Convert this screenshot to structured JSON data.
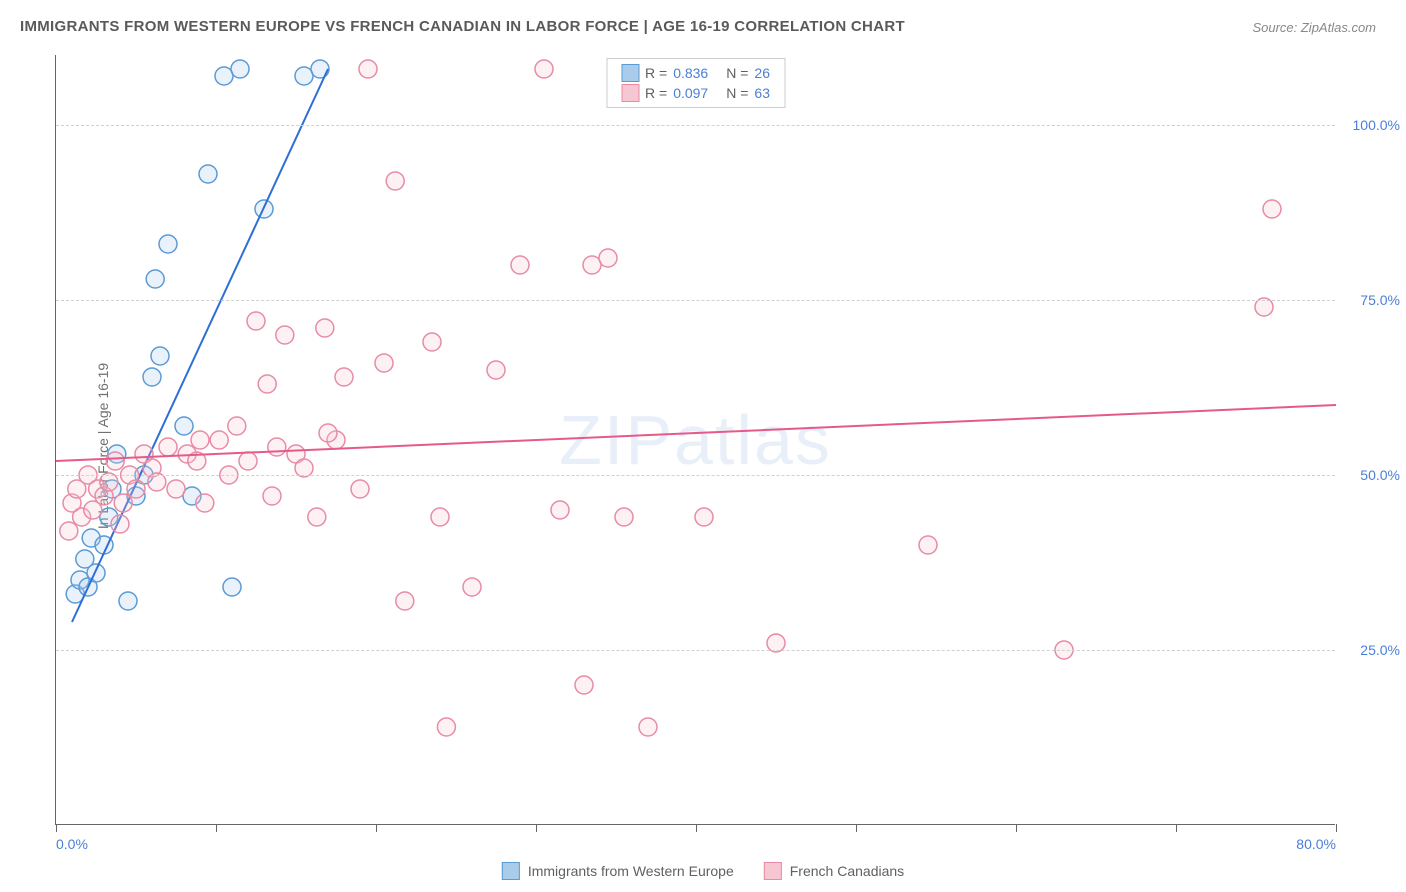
{
  "title": "IMMIGRANTS FROM WESTERN EUROPE VS FRENCH CANADIAN IN LABOR FORCE | AGE 16-19 CORRELATION CHART",
  "source": "Source: ZipAtlas.com",
  "watermark": "ZIPatlas",
  "y_axis_label": "In Labor Force | Age 16-19",
  "chart": {
    "type": "scatter",
    "xlim": [
      0,
      80
    ],
    "ylim": [
      0,
      110
    ],
    "x_ticks": [
      0,
      10,
      20,
      30,
      40,
      50,
      60,
      70,
      80
    ],
    "x_tick_labels": {
      "0": "0.0%",
      "80": "80.0%"
    },
    "y_ticks": [
      25,
      50,
      75,
      100
    ],
    "y_tick_labels": {
      "25": "25.0%",
      "50": "50.0%",
      "75": "75.0%",
      "100": "100.0%"
    },
    "grid_color": "#d0d0d0",
    "background_color": "#ffffff",
    "axis_color": "#666666",
    "tick_label_color": "#4a7fd8",
    "tick_label_fontsize": 14,
    "title_fontsize": 15,
    "title_color": "#5a5a5a",
    "marker_radius": 9,
    "marker_stroke_width": 1.5,
    "marker_fill_opacity": 0.25,
    "line_width": 2
  },
  "series": [
    {
      "name": "Immigrants from Western Europe",
      "color_fill": "#a9cceb",
      "color_stroke": "#5a9bd5",
      "line_color": "#2e6fd6",
      "r_label": "R =",
      "r_value": "0.836",
      "n_label": "N =",
      "n_value": "26",
      "trend": {
        "x1": 1,
        "y1": 29,
        "x2": 17,
        "y2": 108
      },
      "points": [
        [
          1.2,
          33
        ],
        [
          1.5,
          35
        ],
        [
          1.8,
          38
        ],
        [
          2.0,
          34
        ],
        [
          2.2,
          41
        ],
        [
          2.5,
          36
        ],
        [
          3.0,
          40
        ],
        [
          3.3,
          44
        ],
        [
          3.5,
          48
        ],
        [
          3.8,
          53
        ],
        [
          4.5,
          32
        ],
        [
          5.0,
          47
        ],
        [
          5.5,
          50
        ],
        [
          6.0,
          64
        ],
        [
          6.2,
          78
        ],
        [
          6.5,
          67
        ],
        [
          7.0,
          83
        ],
        [
          8.0,
          57
        ],
        [
          8.5,
          47
        ],
        [
          9.5,
          93
        ],
        [
          10.5,
          107
        ],
        [
          11.5,
          108
        ],
        [
          11.0,
          34
        ],
        [
          13.0,
          88
        ],
        [
          15.5,
          107
        ],
        [
          16.5,
          108
        ]
      ]
    },
    {
      "name": "French Canadians",
      "color_fill": "#f6c6d3",
      "color_stroke": "#e78ba6",
      "line_color": "#e65a8a",
      "r_label": "R =",
      "r_value": "0.097",
      "n_label": "N =",
      "n_value": "63",
      "trend": {
        "x1": 0,
        "y1": 52,
        "x2": 80,
        "y2": 60
      },
      "points": [
        [
          0.8,
          42
        ],
        [
          1.0,
          46
        ],
        [
          1.3,
          48
        ],
        [
          1.6,
          44
        ],
        [
          2.0,
          50
        ],
        [
          2.3,
          45
        ],
        [
          2.6,
          48
        ],
        [
          3.0,
          47
        ],
        [
          3.3,
          49
        ],
        [
          3.7,
          52
        ],
        [
          4.2,
          46
        ],
        [
          4.6,
          50
        ],
        [
          5.0,
          48
        ],
        [
          5.5,
          53
        ],
        [
          6.0,
          51
        ],
        [
          6.3,
          49
        ],
        [
          7.0,
          54
        ],
        [
          7.5,
          48
        ],
        [
          8.2,
          53
        ],
        [
          8.8,
          52
        ],
        [
          9.3,
          46
        ],
        [
          10.2,
          55
        ],
        [
          10.8,
          50
        ],
        [
          11.3,
          57
        ],
        [
          12.0,
          52
        ],
        [
          12.5,
          72
        ],
        [
          13.2,
          63
        ],
        [
          13.8,
          54
        ],
        [
          14.3,
          70
        ],
        [
          15.0,
          53
        ],
        [
          15.5,
          51
        ],
        [
          16.3,
          44
        ],
        [
          16.8,
          71
        ],
        [
          17.5,
          55
        ],
        [
          18.0,
          64
        ],
        [
          19.0,
          48
        ],
        [
          19.5,
          108
        ],
        [
          20.5,
          66
        ],
        [
          21.2,
          92
        ],
        [
          21.8,
          32
        ],
        [
          23.5,
          69
        ],
        [
          24.0,
          44
        ],
        [
          24.4,
          14
        ],
        [
          26.0,
          34
        ],
        [
          27.5,
          65
        ],
        [
          29.0,
          80
        ],
        [
          30.5,
          108
        ],
        [
          31.5,
          45
        ],
        [
          33.0,
          20
        ],
        [
          33.5,
          80
        ],
        [
          34.5,
          81
        ],
        [
          35.5,
          44
        ],
        [
          37.0,
          14
        ],
        [
          40.5,
          44
        ],
        [
          45.0,
          26
        ],
        [
          54.5,
          40
        ],
        [
          63.0,
          25
        ],
        [
          76.0,
          88
        ],
        [
          75.5,
          74
        ],
        [
          4.0,
          43
        ],
        [
          9.0,
          55
        ],
        [
          13.5,
          47
        ],
        [
          17.0,
          56
        ]
      ]
    }
  ],
  "bottom_legend": [
    {
      "swatch_fill": "#a9cceb",
      "swatch_stroke": "#5a9bd5",
      "label": "Immigrants from Western Europe"
    },
    {
      "swatch_fill": "#f6c6d3",
      "swatch_stroke": "#e78ba6",
      "label": "French Canadians"
    }
  ]
}
